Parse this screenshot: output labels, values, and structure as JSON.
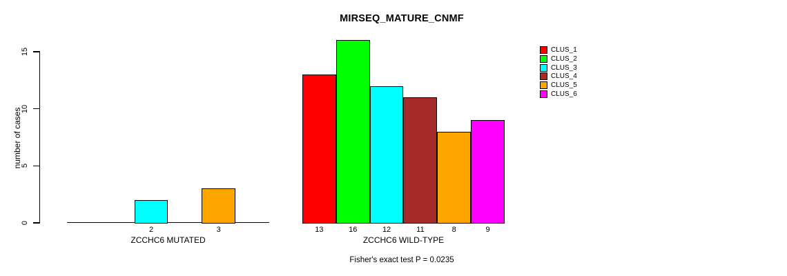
{
  "chart_data": {
    "type": "bar",
    "title": "MIRSEQ_MATURE_CNMF",
    "xlabel": "",
    "ylabel": "number of cases",
    "ylim": [
      0,
      16
    ],
    "yticks": [
      0,
      5,
      10,
      15
    ],
    "grid": false,
    "legend_position": "top-right",
    "annotation": "Fisher's exact test P = 0.0235",
    "clusters": [
      {
        "label": "CLUS_1",
        "color": "#FF0000"
      },
      {
        "label": "CLUS_2",
        "color": "#00FF00"
      },
      {
        "label": "CLUS_3",
        "color": "#00FFFF"
      },
      {
        "label": "CLUS_4",
        "color": "#A52A2A"
      },
      {
        "label": "CLUS_5",
        "color": "#FFA500"
      },
      {
        "label": "CLUS_6",
        "color": "#FF00FF"
      }
    ],
    "groups": [
      {
        "label": "ZCCHC6 MUTATED",
        "values": [
          0,
          0,
          2,
          0,
          3,
          0
        ],
        "bar_labels": [
          "",
          "",
          "2",
          "",
          "3",
          ""
        ]
      },
      {
        "label": "ZCCHC6 WILD-TYPE",
        "values": [
          13,
          16,
          12,
          11,
          8,
          9
        ],
        "bar_labels": [
          "13",
          "16",
          "12",
          "11",
          "8",
          "9"
        ]
      }
    ]
  }
}
